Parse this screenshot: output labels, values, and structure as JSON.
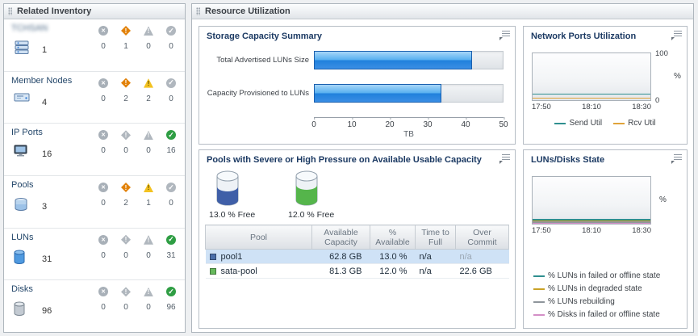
{
  "inventory": {
    "title": "Related Inventory",
    "status_legend": [
      "fatal-icon",
      "critical-icon",
      "warning-icon",
      "normal-icon"
    ],
    "rows": [
      {
        "label": "TCHSAN",
        "count": "1",
        "statuses": [
          "0",
          "1",
          "0",
          "0"
        ]
      },
      {
        "label": "Member Nodes",
        "count": "4",
        "statuses": [
          "0",
          "2",
          "2",
          "0"
        ]
      },
      {
        "label": "IP Ports",
        "count": "16",
        "statuses": [
          "0",
          "0",
          "0",
          "16"
        ]
      },
      {
        "label": "Pools",
        "count": "3",
        "statuses": [
          "0",
          "2",
          "1",
          "0"
        ]
      },
      {
        "label": "LUNs",
        "count": "31",
        "statuses": [
          "0",
          "0",
          "0",
          "31"
        ]
      },
      {
        "label": "Disks",
        "count": "96",
        "statuses": [
          "0",
          "0",
          "0",
          "96"
        ]
      }
    ]
  },
  "resource": {
    "title": "Resource Utilization",
    "storage": {
      "title": "Storage Capacity Summary"
    },
    "network": {
      "title": "Network Ports Utilization"
    },
    "luns_disks": {
      "title": "LUNs/Disks State"
    },
    "pools": {
      "title": "Pools with Severe or High Pressure on Available Usable Capacity",
      "gauges": [
        {
          "label": "13.0 % Free",
          "color": "#3f5fa8"
        },
        {
          "label": "12.0 % Free",
          "color": "#55b54b"
        }
      ],
      "table": {
        "columns": [
          "Pool",
          "Available Capacity",
          "% Available",
          "Time to Full",
          "Over Commit"
        ],
        "rows": [
          {
            "name": "pool1",
            "swatch": "#4a6ea9",
            "available_capacity": "62.8 GB",
            "pct_available": "13.0 %",
            "time_to_full": "n/a",
            "over_commit": "n/a"
          },
          {
            "name": "sata-pool",
            "swatch": "#66b95c",
            "available_capacity": "81.3 GB",
            "pct_available": "12.0 %",
            "time_to_full": "n/a",
            "over_commit": "22.6 GB"
          }
        ]
      }
    }
  },
  "chart_data": [
    {
      "type": "bar",
      "title": "Storage Capacity Summary",
      "categories": [
        "Total Advertised LUNs Size",
        "Capacity Provisioned to LUNs"
      ],
      "values": [
        42,
        34
      ],
      "xlabel": "TB",
      "xlim": [
        0,
        50
      ],
      "xticks": [
        0,
        10,
        20,
        30,
        40,
        50
      ],
      "orientation": "horizontal",
      "bar_color": "#2f7fd8"
    },
    {
      "type": "line",
      "title": "Network Ports Utilization",
      "x_ticks": [
        "17:50",
        "18:10",
        "18:30"
      ],
      "ylabel": "%",
      "ylim": [
        0,
        100
      ],
      "legend_position": "bottom",
      "series": [
        {
          "name": "Send Util",
          "color": "#2f8f8f",
          "values": [
            3,
            3,
            3
          ]
        },
        {
          "name": "Rcv Util",
          "color": "#e0a33a",
          "values": [
            1,
            1,
            1
          ]
        }
      ]
    },
    {
      "type": "line",
      "title": "LUNs/Disks State",
      "x_ticks": [
        "17:50",
        "18:10",
        "18:30"
      ],
      "ylabel": "%",
      "ylim": [
        0,
        100
      ],
      "legend_position": "bottom",
      "series": [
        {
          "name": "% LUNs in failed or offline state",
          "color": "#2f8f8f",
          "values": [
            0,
            0,
            0
          ]
        },
        {
          "name": "% LUNs in degraded state",
          "color": "#c9a227",
          "values": [
            0,
            0,
            0
          ]
        },
        {
          "name": "% LUNs rebuilding",
          "color": "#8f969c",
          "values": [
            0,
            0,
            0
          ]
        },
        {
          "name": "% Disks in failed or offline state",
          "color": "#d48fc7",
          "values": [
            0,
            0,
            0
          ]
        }
      ]
    }
  ]
}
